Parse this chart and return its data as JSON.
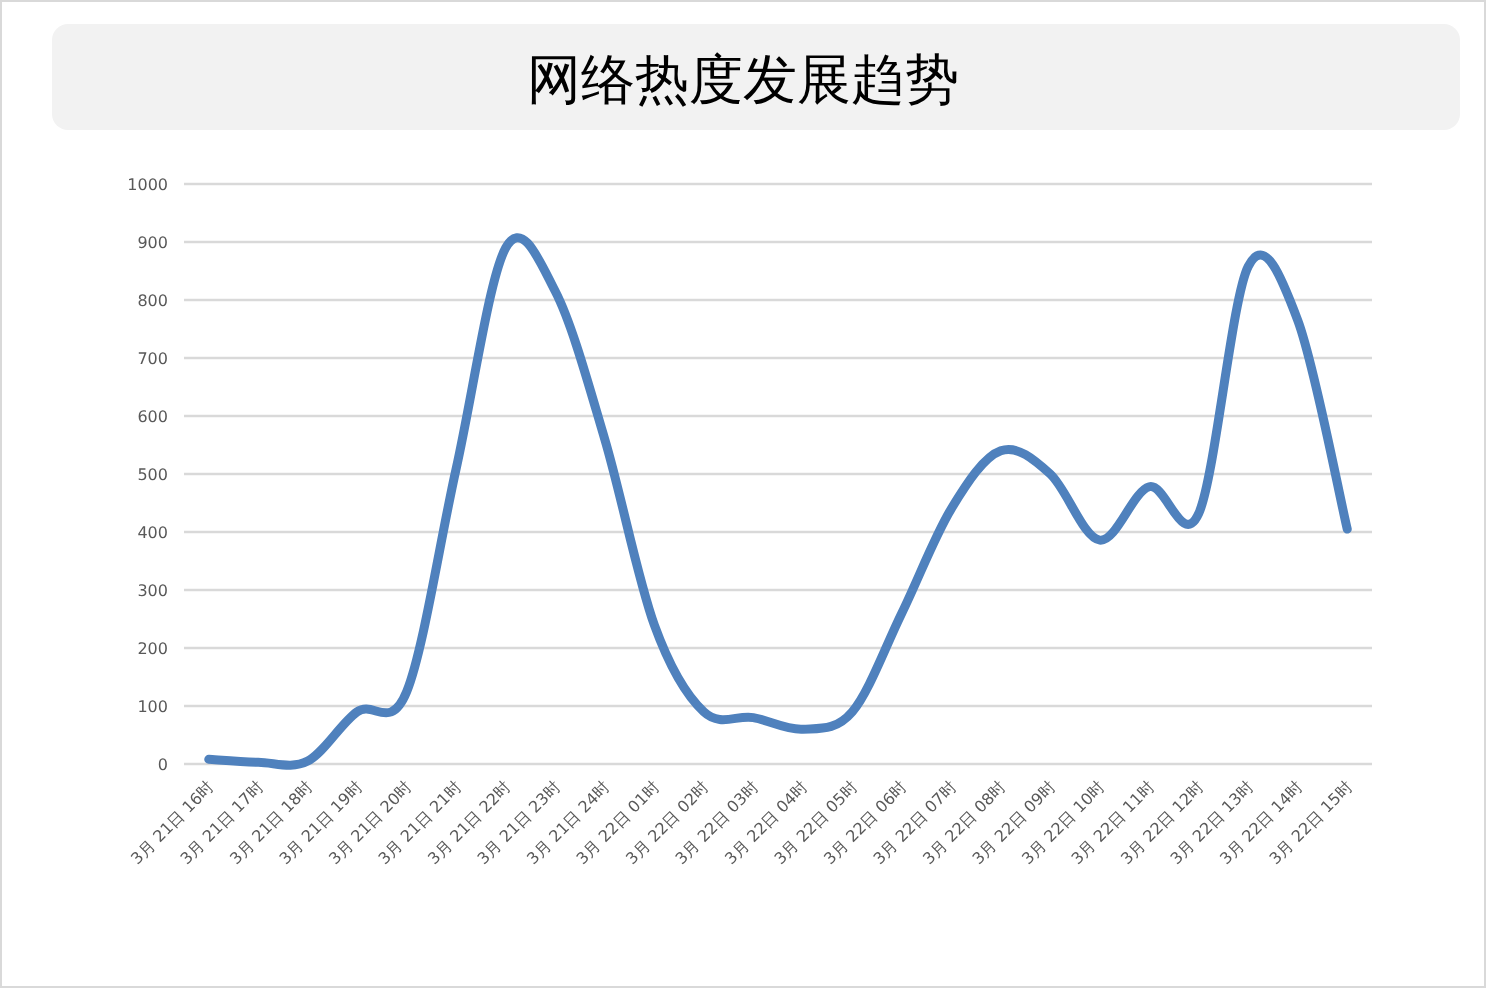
{
  "chart_data": {
    "type": "line",
    "title": "网络热度发展趋势",
    "categories": [
      "3月 21日 16时",
      "3月 21日 17时",
      "3月 21日 18时",
      "3月 21日 19时",
      "3月 21日 20时",
      "3月 21日 21时",
      "3月 21日 22时",
      "3月 21日 23时",
      "3月 21日 24时",
      "3月 22日 01时",
      "3月 22日 02时",
      "3月 22日 03时",
      "3月 22日 04时",
      "3月 22日 05时",
      "3月 22日 06时",
      "3月 22日 07时",
      "3月 22日 08时",
      "3月 22日 09时",
      "3月 22日 10时",
      "3月 22日 11时",
      "3月 22日 12时",
      "3月 22日 13时",
      "3月 22日 14时",
      "3月 22日 15时"
    ],
    "series": [
      {
        "color": "#4f81bd",
        "values": [
          8,
          3,
          5,
          90,
          125,
          510,
          890,
          815,
          560,
          240,
          90,
          80,
          60,
          90,
          260,
          440,
          540,
          500,
          386,
          478,
          432,
          858,
          765,
          405
        ]
      }
    ],
    "ylim": [
      0,
      1000
    ],
    "yticks": [
      0,
      100,
      200,
      300,
      400,
      500,
      600,
      700,
      800,
      900,
      1000
    ],
    "grid": "y",
    "marker": "none",
    "line_style": "solid"
  }
}
